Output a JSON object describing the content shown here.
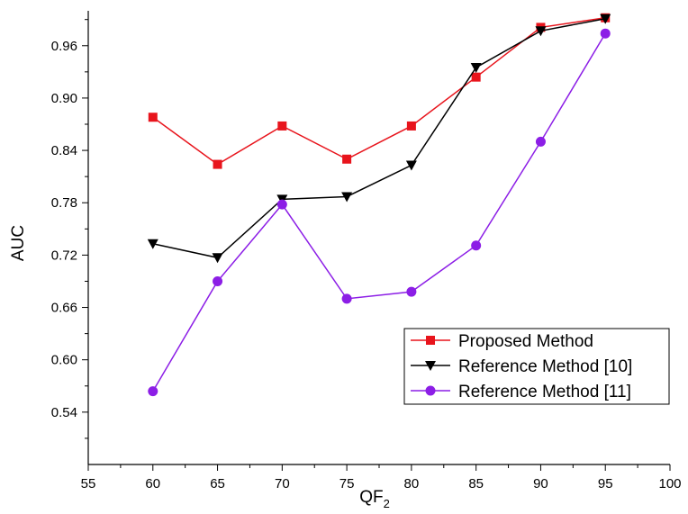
{
  "chart_data": {
    "type": "line",
    "xlabel": "QF",
    "xlabel_subscript": "2",
    "ylabel": "AUC",
    "xlim": [
      55,
      100
    ],
    "ylim": [
      0.48,
      1.0
    ],
    "x_ticks": [
      "55",
      "60",
      "65",
      "70",
      "75",
      "80",
      "85",
      "90",
      "95",
      "100"
    ],
    "y_ticks": [
      "0.54",
      "0.60",
      "0.66",
      "0.72",
      "0.78",
      "0.84",
      "0.90",
      "0.96"
    ],
    "x": [
      60,
      65,
      70,
      75,
      80,
      85,
      90,
      95
    ],
    "grid": false,
    "legend_position": "bottom-right",
    "series": [
      {
        "name": "Proposed Method",
        "color": "#e8141c",
        "marker": "square",
        "values": [
          0.878,
          0.824,
          0.868,
          0.83,
          0.868,
          0.924,
          0.981,
          0.992
        ]
      },
      {
        "name": "Reference Method [10]",
        "color": "#000000",
        "marker": "triangle-down",
        "values": [
          0.733,
          0.717,
          0.784,
          0.787,
          0.823,
          0.935,
          0.977,
          0.991
        ]
      },
      {
        "name": "Reference Method [11]",
        "color": "#8c1ee6",
        "marker": "circle",
        "values": [
          0.564,
          0.69,
          0.778,
          0.67,
          0.678,
          0.731,
          0.85,
          0.974
        ]
      }
    ]
  }
}
